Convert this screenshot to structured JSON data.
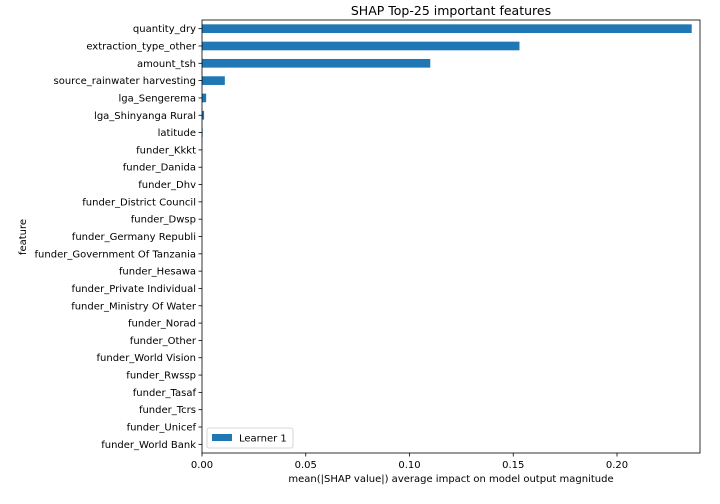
{
  "chart_data": {
    "type": "bar",
    "orientation": "horizontal",
    "title": "SHAP Top-25 important features",
    "xlabel": "mean(|SHAP value|) average impact on model output magnitude",
    "ylabel": "feature",
    "xlim": [
      0,
      0.24
    ],
    "xticks": [
      "0.00",
      "0.05",
      "0.10",
      "0.15",
      "0.20"
    ],
    "categories": [
      "quantity_dry",
      "extraction_type_other",
      "amount_tsh",
      "source_rainwater harvesting",
      "lga_Sengerema",
      "lga_Shinyanga Rural",
      "latitude",
      "funder_Kkkt",
      "funder_Danida",
      "funder_Dhv",
      "funder_District Council",
      "funder_Dwsp",
      "funder_Germany Republi",
      "funder_Government Of Tanzania",
      "funder_Hesawa",
      "funder_Private Individual",
      "funder_Ministry Of Water",
      "funder_Norad",
      "funder_Other",
      "funder_World Vision",
      "funder_Rwssp",
      "funder_Tasaf",
      "funder_Tcrs",
      "funder_Unicef",
      "funder_World Bank"
    ],
    "series": [
      {
        "name": "Learner 1",
        "color": "#1f77b4",
        "values": [
          0.236,
          0.153,
          0.11,
          0.011,
          0.002,
          0.001,
          0.0003,
          0,
          0,
          0,
          0,
          0,
          0,
          0,
          0,
          0,
          0,
          0,
          0,
          0,
          0,
          0,
          0,
          0,
          0
        ]
      }
    ],
    "legend": {
      "position": "lower-left"
    },
    "grid": false
  }
}
